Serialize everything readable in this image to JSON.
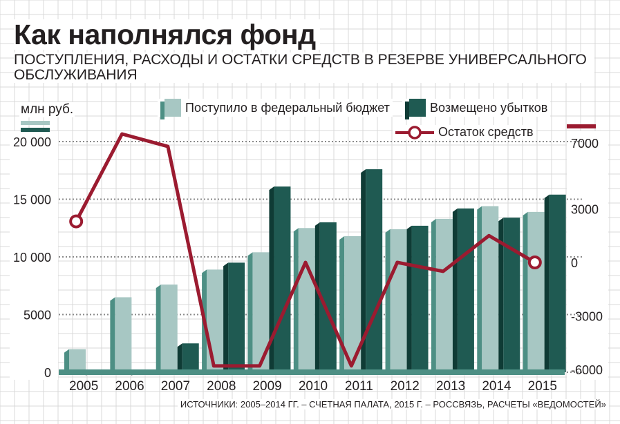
{
  "title": "Как наполнялся фонд",
  "subtitle": "ПОСТУПЛЕНИЯ, РАСХОДЫ И ОСТАТКИ СРЕДСТВ В РЕЗЕРВЕ УНИВЕРСАЛЬНОГО ОБСЛУЖИВАНИЯ",
  "source": "ИСТОЧНИКИ: 2005–2014 ГГ. – СЧЕТНАЯ ПАЛАТА, 2015 Г. – РОССВЯЗЬ, РАСЧЕТЫ «ВЕДОМОСТЕЙ»",
  "colors": {
    "income": "#a7c7c3",
    "income_side": "#4d8f84",
    "compensation": "#1f5a52",
    "compensation_side": "#0f3b35",
    "remainder": "#9b1b30",
    "grid": "#d8d8d8",
    "dots": "#8a8a8a"
  },
  "chart_data": {
    "type": "bar",
    "title": "Как наполнялся фонд",
    "ylabel": "млн руб.",
    "categories": [
      "2005",
      "2006",
      "2007",
      "2008",
      "2009",
      "2010",
      "2011",
      "2012",
      "2013",
      "2014",
      "2015"
    ],
    "ylim": [
      0,
      20000
    ],
    "yticks": [
      "0",
      "5000",
      "10 000",
      "15 000",
      "20 000"
    ],
    "y2lim": [
      -6000,
      7000
    ],
    "y2ticks": [
      "-6000",
      "-3000",
      "0",
      "3000",
      "7000"
    ],
    "series": [
      {
        "name": "Поступило в федеральный бюджет",
        "kind": "bar",
        "axis": "left",
        "values": [
          2000,
          6500,
          7600,
          8900,
          10400,
          12500,
          11800,
          12400,
          13300,
          14400,
          13900
        ]
      },
      {
        "name": "Возмещено убытков",
        "kind": "bar",
        "axis": "left",
        "values": [
          0,
          0,
          2500,
          9500,
          16100,
          13000,
          17600,
          12700,
          14200,
          13400,
          15400
        ]
      },
      {
        "name": "Остаток средств",
        "kind": "line",
        "axis": "right",
        "values": [
          2300,
          7200,
          6500,
          -5800,
          -5800,
          0,
          -5800,
          0,
          -500,
          1500,
          0
        ]
      }
    ]
  },
  "legend": {
    "income": "Поступило в федеральный бюджет",
    "compensation": "Возмещено убытков",
    "remainder": "Остаток средств"
  }
}
